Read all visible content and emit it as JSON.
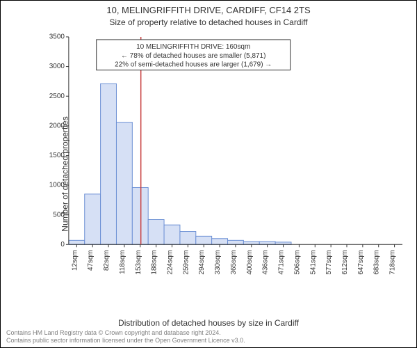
{
  "title": "10, MELINGRIFFITH DRIVE, CARDIFF, CF14 2TS",
  "subtitle": "Size of property relative to detached houses in Cardiff",
  "ylabel": "Number of detached properties",
  "xlabel": "Distribution of detached houses by size in Cardiff",
  "footer": {
    "line1": "Contains HM Land Registry data © Crown copyright and database right 2024.",
    "line2": "Contains public sector information licensed under the Open Government Licence v3.0."
  },
  "chart": {
    "type": "bar",
    "ylim": [
      0,
      3500
    ],
    "ytick_step": 500,
    "yticks": [
      0,
      500,
      1000,
      1500,
      2000,
      2500,
      3000,
      3500
    ],
    "categories": [
      "12sqm",
      "47sqm",
      "82sqm",
      "118sqm",
      "153sqm",
      "188sqm",
      "224sqm",
      "259sqm",
      "294sqm",
      "330sqm",
      "365sqm",
      "400sqm",
      "436sqm",
      "471sqm",
      "506sqm",
      "541sqm",
      "577sqm",
      "612sqm",
      "647sqm",
      "683sqm",
      "718sqm"
    ],
    "values": [
      70,
      850,
      2710,
      2060,
      960,
      420,
      330,
      220,
      140,
      100,
      70,
      50,
      50,
      40,
      0,
      0,
      0,
      0,
      0,
      0,
      0
    ],
    "bar_fill": "#d6e0f5",
    "bar_stroke": "#6b8fd4",
    "marker_color": "#c94040",
    "marker_value": 160,
    "x_domain": [
      0,
      740
    ],
    "background_color": "#ffffff",
    "axis_color": "#333333",
    "grid_color": "#dddddd",
    "title_fontsize": 13,
    "label_fontsize": 12,
    "tick_fontsize": 10
  },
  "info_box": {
    "line1": "10 MELINGRIFFITH DRIVE: 160sqm",
    "line2": "← 78% of detached houses are smaller (5,871)",
    "line3": "22% of semi-detached houses are larger (1,679) →"
  }
}
